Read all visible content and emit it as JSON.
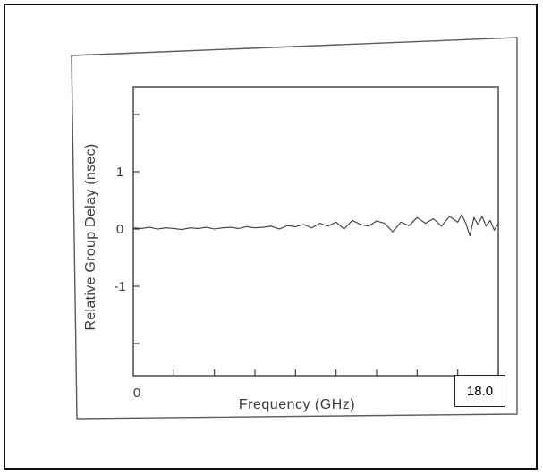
{
  "chart_data": {
    "type": "line",
    "title": "",
    "xlabel": "Frequency (GHz)",
    "ylabel": "Relative Group Delay (nsec)",
    "xlim": [
      0,
      18.0
    ],
    "ylim": [
      -2,
      2.5
    ],
    "x_tick_labels": [
      "0"
    ],
    "x_end_label": "18.0",
    "y_ticks": [
      1,
      0,
      -1
    ],
    "y_tick_labels": [
      "1",
      "0",
      "-1"
    ],
    "grid": false,
    "series": [
      {
        "x": [
          0,
          0.4,
          0.8,
          1.2,
          1.6,
          2.0,
          2.4,
          2.8,
          3.2,
          3.6,
          4.0,
          4.4,
          4.8,
          5.2,
          5.6,
          6.0,
          6.4,
          6.8,
          7.2,
          7.6,
          8.0,
          8.4,
          8.8,
          9.2,
          9.6,
          10.0,
          10.4,
          10.8,
          11.2,
          11.6,
          12.0,
          12.4,
          12.8,
          13.2,
          13.6,
          14.0,
          14.4,
          14.8,
          15.2,
          15.6,
          16.0,
          16.2,
          16.4,
          16.6,
          16.8,
          17.0,
          17.2,
          17.4,
          17.6,
          17.8,
          18.0
        ],
        "y": [
          0.02,
          0.01,
          0.03,
          0.0,
          0.02,
          0.01,
          -0.01,
          0.02,
          0.01,
          0.03,
          0.0,
          0.02,
          0.03,
          0.01,
          0.04,
          0.02,
          0.03,
          0.05,
          0.0,
          0.06,
          0.04,
          0.08,
          0.02,
          0.1,
          0.05,
          0.12,
          0.0,
          0.15,
          0.08,
          0.05,
          0.14,
          0.1,
          -0.05,
          0.12,
          0.06,
          0.2,
          0.1,
          0.18,
          0.05,
          0.22,
          0.12,
          0.25,
          0.1,
          -0.12,
          0.2,
          0.08,
          0.22,
          0.05,
          0.15,
          -0.02,
          0.1
        ]
      }
    ]
  }
}
